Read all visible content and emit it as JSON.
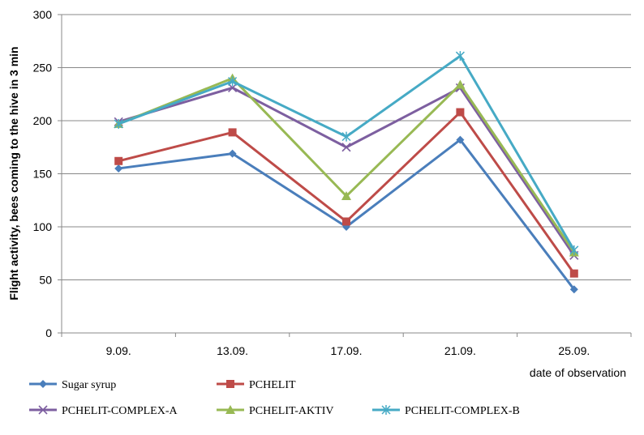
{
  "chart_data": {
    "type": "line",
    "title": "",
    "xlabel": "date of observation",
    "ylabel": "Flight activity, bees coming to the hive in 3 min",
    "categories": [
      "9.09.",
      "13.09.",
      "17.09.",
      "21.09.",
      "25.09."
    ],
    "ylim": [
      0,
      300
    ],
    "yticks": [
      0,
      50,
      100,
      150,
      200,
      250,
      300
    ],
    "grid": true,
    "legend_position": "bottom",
    "series": [
      {
        "name": "Sugar syrup",
        "color": "#4a7ebb",
        "marker": "diamond",
        "values": [
          155,
          169,
          100,
          182,
          41
        ]
      },
      {
        "name": "PCHELIT",
        "color": "#be4b48",
        "marker": "square",
        "values": [
          162,
          189,
          105,
          208,
          56
        ]
      },
      {
        "name": "PCHELIT-COMPLEX-A",
        "color": "#7d5fa0",
        "marker": "x",
        "values": [
          199,
          231,
          175,
          231,
          73
        ]
      },
      {
        "name": "PCHELIT-AKTIV",
        "color": "#98b954",
        "marker": "triangle",
        "values": [
          197,
          240,
          129,
          234,
          76
        ]
      },
      {
        "name": "PCHELIT-COMPLEX-B",
        "color": "#46aac5",
        "marker": "star",
        "values": [
          197,
          237,
          185,
          261,
          78
        ]
      }
    ]
  }
}
